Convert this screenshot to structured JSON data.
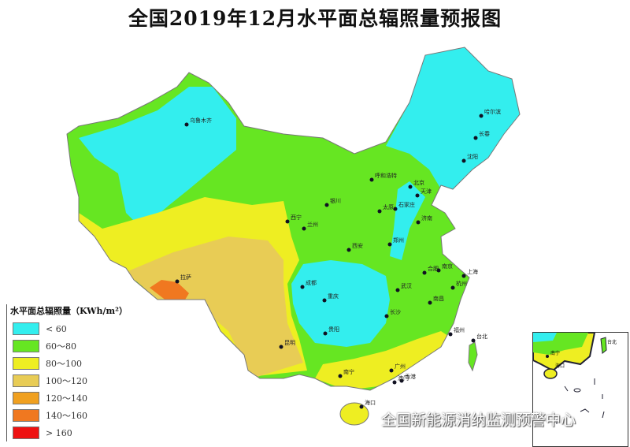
{
  "title": "全国2019年12月水平面总辐照量预报图",
  "legend": {
    "title": "水平面总辐照量（KWh/m²）",
    "items": [
      {
        "label": "< 60",
        "color": "#33eeee"
      },
      {
        "label": "60～80",
        "color": "#66e622"
      },
      {
        "label": "80～100",
        "color": "#eeee22"
      },
      {
        "label": "100～120",
        "color": "#e8cc55"
      },
      {
        "label": "120～140",
        "color": "#f0a020"
      },
      {
        "label": "140～160",
        "color": "#f07820"
      },
      {
        "label": "> 160",
        "color": "#ee1111"
      }
    ]
  },
  "cities": [
    "乌鲁木齐",
    "哈尔滨",
    "长春",
    "沈阳",
    "呼和浩特",
    "北京",
    "天津",
    "石家庄",
    "太原",
    "银川",
    "西宁",
    "兰州",
    "济南",
    "郑州",
    "西安",
    "合肥",
    "南京",
    "上海",
    "杭州",
    "武汉",
    "成都",
    "重庆",
    "长沙",
    "南昌",
    "贵阳",
    "昆明",
    "拉萨",
    "福州",
    "台北",
    "南宁",
    "广州",
    "香港",
    "澳门",
    "海口"
  ],
  "inset": {
    "cities": [
      "南宁",
      "海口",
      "台北"
    ]
  },
  "watermark": "全国新能源消纳监测预警中心"
}
